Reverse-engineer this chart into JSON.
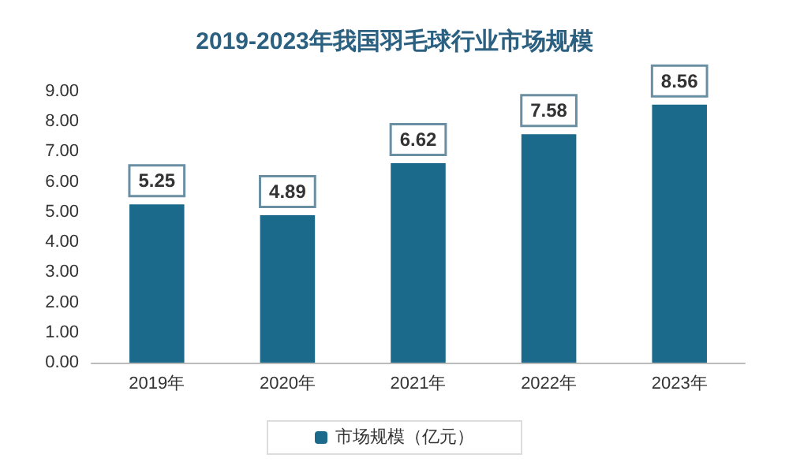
{
  "chart_data": {
    "type": "bar",
    "title": "2019-2023年我国羽毛球行业市场规模",
    "categories": [
      "2019年",
      "2020年",
      "2021年",
      "2022年",
      "2023年"
    ],
    "series": [
      {
        "name": "市场规模（亿元）",
        "color": "#1b6a8c",
        "values": [
          5.25,
          4.89,
          6.62,
          7.58,
          8.56
        ]
      }
    ],
    "ylim": [
      0,
      9
    ],
    "yticks": [
      {
        "value": 0,
        "label": "0.00"
      },
      {
        "value": 1,
        "label": "1.00"
      },
      {
        "value": 2,
        "label": "2.00"
      },
      {
        "value": 3,
        "label": "3.00"
      },
      {
        "value": 4,
        "label": "4.00"
      },
      {
        "value": 5,
        "label": "5.00"
      },
      {
        "value": 6,
        "label": "6.00"
      },
      {
        "value": 7,
        "label": "7.00"
      },
      {
        "value": 8,
        "label": "8.00"
      },
      {
        "value": 9,
        "label": "9.00"
      }
    ],
    "data_labels": true,
    "legend": "bottom",
    "grid": false
  }
}
